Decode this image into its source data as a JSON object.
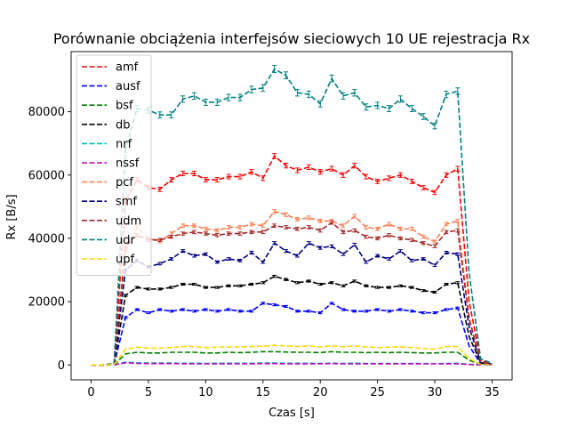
{
  "chart_data": {
    "type": "line",
    "title": "Porównanie obciążenia interfejsów sieciowych 10 UE rejestracja Rx",
    "xlabel": "Czas [s]",
    "ylabel": "Rx [B/s]",
    "xlim": [
      -1.75,
      36.75
    ],
    "ylim": [
      -4700,
      99000
    ],
    "xticks": [
      0,
      5,
      10,
      15,
      20,
      25,
      30,
      35
    ],
    "yticks": [
      0,
      20000,
      40000,
      60000,
      80000
    ],
    "grid": false,
    "legend_position": "top-left",
    "line_style": "dashed",
    "error_bars": true,
    "x": [
      0,
      1,
      2,
      3,
      4,
      5,
      6,
      7,
      8,
      9,
      10,
      11,
      12,
      13,
      14,
      15,
      16,
      17,
      18,
      19,
      20,
      21,
      22,
      23,
      24,
      25,
      26,
      27,
      28,
      29,
      30,
      31,
      32,
      33,
      34,
      35
    ],
    "series": [
      {
        "name": "amf",
        "color": "#ff0000",
        "values": [
          0,
          0,
          200,
          52000,
          58500,
          56000,
          55500,
          58500,
          60500,
          60500,
          58500,
          58500,
          59500,
          59500,
          61000,
          59000,
          66000,
          63000,
          61500,
          62500,
          61000,
          62000,
          60000,
          63000,
          59500,
          58000,
          59000,
          60000,
          58000,
          56000,
          54500,
          60000,
          62000,
          20000,
          1500,
          300
        ]
      },
      {
        "name": "ausf",
        "color": "#0000ff",
        "values": [
          0,
          0,
          100,
          15000,
          17500,
          16500,
          17500,
          17000,
          17500,
          17000,
          17500,
          17000,
          17500,
          17000,
          17000,
          19500,
          19000,
          18500,
          17000,
          17000,
          16500,
          19500,
          17500,
          17000,
          17000,
          17500,
          17000,
          17500,
          17000,
          16500,
          16500,
          17500,
          18000,
          6000,
          500,
          100
        ]
      },
      {
        "name": "bsf",
        "color": "#008000",
        "values": [
          0,
          0,
          50,
          3500,
          4000,
          3800,
          3800,
          4000,
          4000,
          4000,
          3800,
          3800,
          4000,
          3900,
          4000,
          4200,
          4200,
          4100,
          4000,
          4000,
          3900,
          4200,
          4000,
          4000,
          3900,
          4000,
          3900,
          4000,
          3900,
          3800,
          3800,
          4000,
          4000,
          1500,
          100,
          50
        ]
      },
      {
        "name": "db",
        "color": "#000000",
        "values": [
          0,
          0,
          200,
          22000,
          24500,
          24000,
          24000,
          24500,
          25500,
          25500,
          24500,
          24500,
          25000,
          25000,
          25500,
          26000,
          28000,
          27000,
          26000,
          26500,
          25500,
          26000,
          25000,
          26500,
          25000,
          24500,
          24500,
          25000,
          24500,
          23500,
          23000,
          25500,
          26000,
          9000,
          700,
          200
        ]
      },
      {
        "name": "nrf",
        "color": "#00bfbf",
        "values": [
          0,
          0,
          20,
          900,
          700,
          600,
          600,
          600,
          550,
          550,
          500,
          550,
          550,
          550,
          550,
          600,
          600,
          550,
          550,
          550,
          500,
          550,
          500,
          550,
          500,
          500,
          500,
          500,
          500,
          450,
          450,
          500,
          550,
          200,
          50,
          20
        ]
      },
      {
        "name": "nssf",
        "color": "#bf00bf",
        "values": [
          0,
          0,
          20,
          700,
          500,
          450,
          450,
          450,
          400,
          400,
          400,
          400,
          400,
          400,
          400,
          450,
          450,
          400,
          400,
          400,
          400,
          450,
          400,
          400,
          400,
          400,
          400,
          400,
          400,
          350,
          350,
          400,
          400,
          150,
          30,
          10
        ]
      },
      {
        "name": "pcf",
        "color": "#ff7f50",
        "values": [
          0,
          0,
          300,
          36000,
          43500,
          40000,
          39000,
          41500,
          44000,
          44000,
          43000,
          42500,
          43500,
          43500,
          44500,
          44000,
          48500,
          47500,
          46000,
          46500,
          45500,
          45500,
          44000,
          47000,
          43500,
          43000,
          44500,
          43000,
          43000,
          40500,
          39000,
          44500,
          45500,
          15000,
          1000,
          300
        ]
      },
      {
        "name": "smf",
        "color": "#000080",
        "values": [
          0,
          0,
          250,
          30000,
          33000,
          31000,
          32000,
          33500,
          36000,
          34500,
          35000,
          32500,
          33500,
          33000,
          35500,
          32500,
          38500,
          36000,
          34500,
          38500,
          37000,
          37500,
          35000,
          38000,
          32500,
          34500,
          33500,
          36000,
          33000,
          33500,
          31500,
          35500,
          35000,
          12000,
          800,
          200
        ]
      },
      {
        "name": "udm",
        "color": "#a52a2a",
        "values": [
          0,
          0,
          300,
          37500,
          41000,
          39500,
          39500,
          40500,
          41500,
          42000,
          41500,
          41000,
          41500,
          41500,
          42000,
          42000,
          44000,
          43500,
          43000,
          43500,
          42500,
          45000,
          42000,
          42500,
          40500,
          40000,
          41000,
          40000,
          39500,
          38500,
          37500,
          42000,
          42500,
          14500,
          1000,
          300
        ]
      },
      {
        "name": "udr",
        "color": "#008080",
        "values": [
          0,
          0,
          500,
          68000,
          81000,
          80500,
          79000,
          79000,
          84000,
          85000,
          83000,
          83000,
          84500,
          84500,
          87000,
          87500,
          93500,
          91500,
          86000,
          85500,
          82500,
          90500,
          85000,
          86000,
          81500,
          82000,
          81000,
          84000,
          81000,
          78500,
          75500,
          85500,
          86500,
          29000,
          2000,
          500
        ]
      },
      {
        "name": "upf",
        "color": "#ffd700",
        "values": [
          0,
          0,
          100,
          5000,
          5600,
          5300,
          5300,
          5500,
          5800,
          5800,
          5500,
          5600,
          5700,
          5700,
          5800,
          5900,
          6200,
          6000,
          5800,
          6000,
          5700,
          6000,
          5700,
          6000,
          5700,
          5500,
          5600,
          5700,
          5500,
          5200,
          5000,
          5800,
          5800,
          2000,
          200,
          100
        ]
      }
    ]
  }
}
